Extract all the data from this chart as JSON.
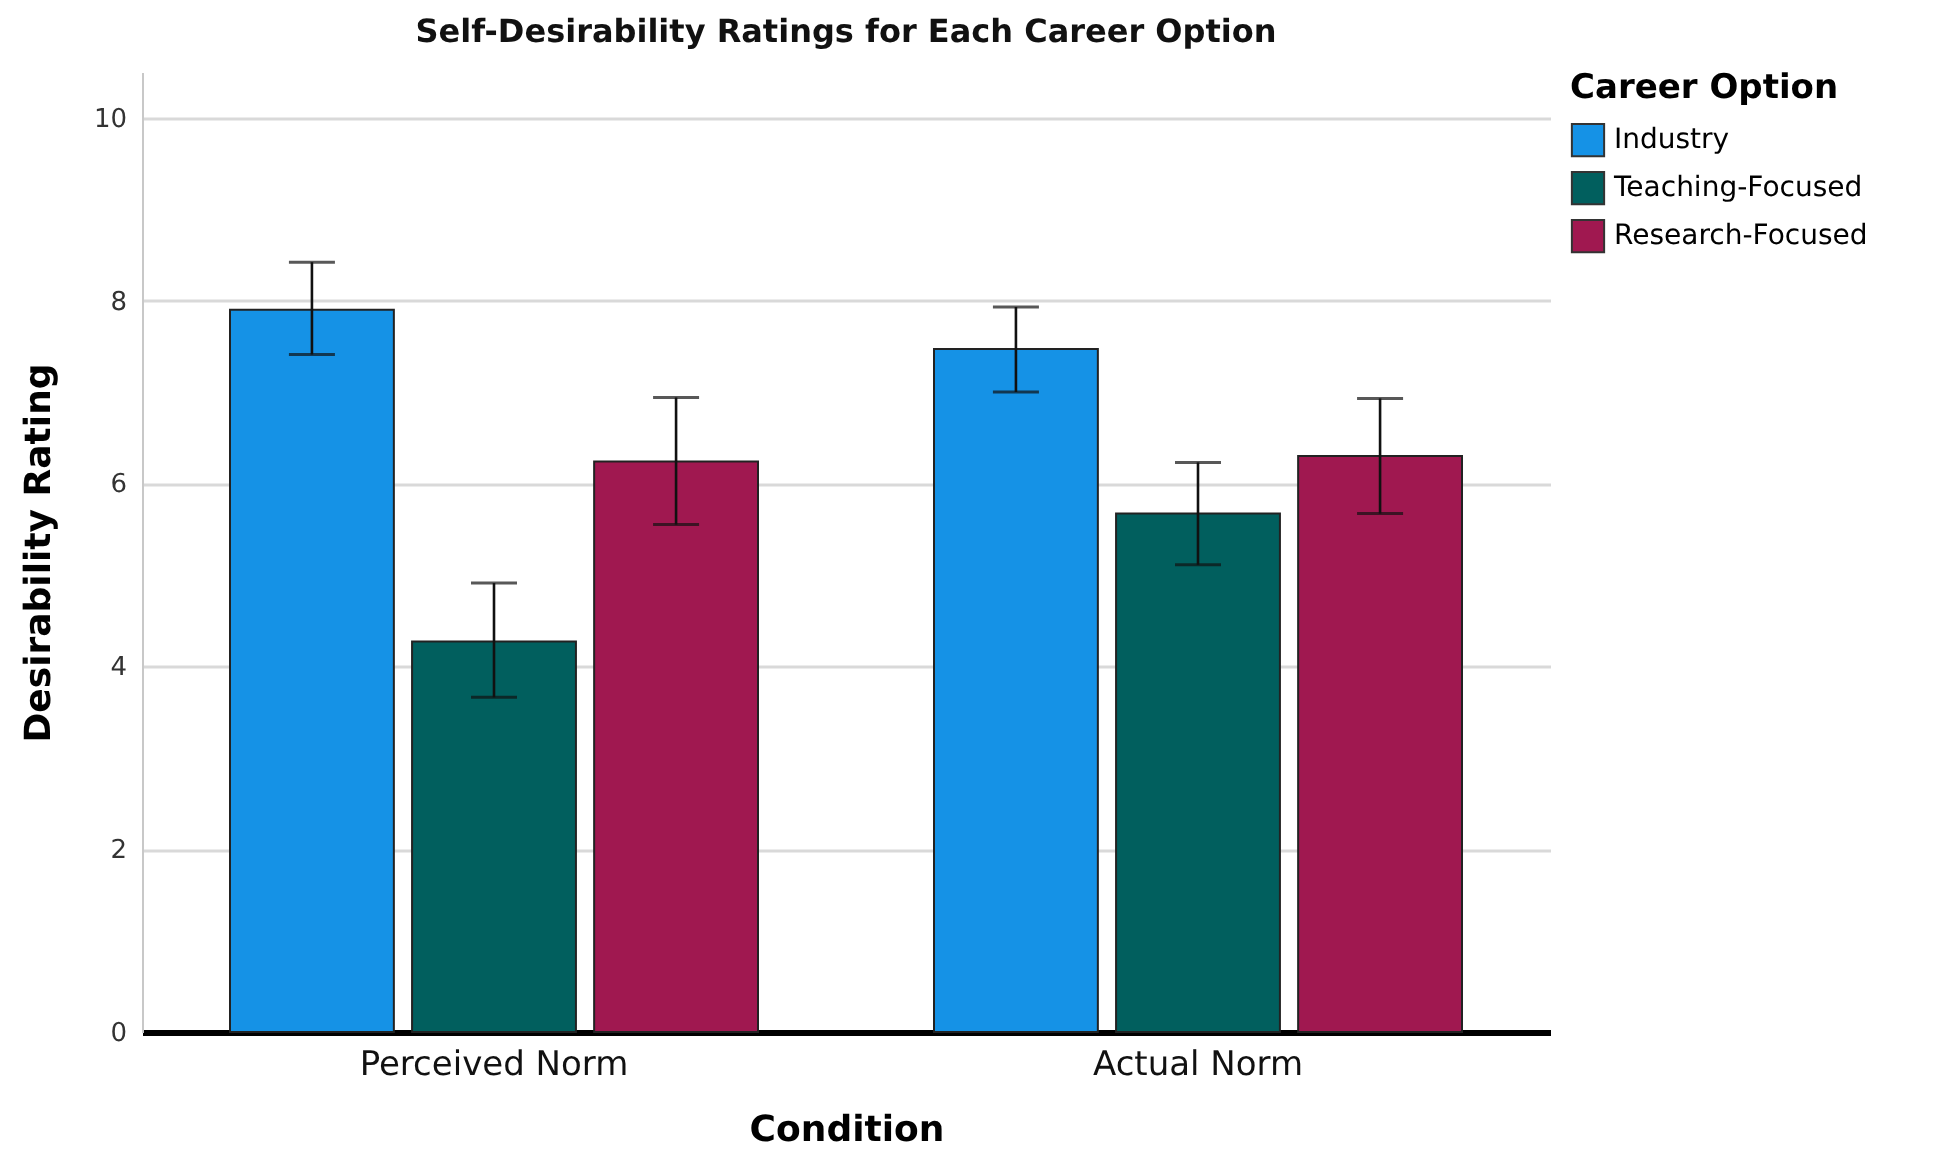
{
  "chart_data": {
    "type": "bar",
    "title": "Self-Desirability Ratings for Each Career Option",
    "xlabel": "Condition",
    "ylabel": "Desirability Rating",
    "legend_title": "Career Option",
    "categories": [
      "Perceived Norm",
      "Actual Norm"
    ],
    "series": [
      {
        "name": "Industry",
        "color": "#1592e6",
        "values": [
          7.9,
          7.47
        ],
        "errors": [
          [
            7.41,
            8.42
          ],
          [
            7.0,
            7.93
          ]
        ]
      },
      {
        "name": "Teaching-Focused",
        "color": "#015f5e",
        "values": [
          4.27,
          5.67
        ],
        "errors": [
          [
            3.66,
            4.91
          ],
          [
            5.11,
            6.23
          ]
        ]
      },
      {
        "name": "Research-Focused",
        "color": "#a01850",
        "values": [
          6.24,
          6.3
        ],
        "errors": [
          [
            5.55,
            6.94
          ],
          [
            5.67,
            6.93
          ]
        ]
      }
    ],
    "ylim": [
      0,
      10.5
    ],
    "yticks": [
      0,
      2,
      4,
      6,
      8,
      10
    ],
    "grid": "y",
    "legend": "top right"
  }
}
